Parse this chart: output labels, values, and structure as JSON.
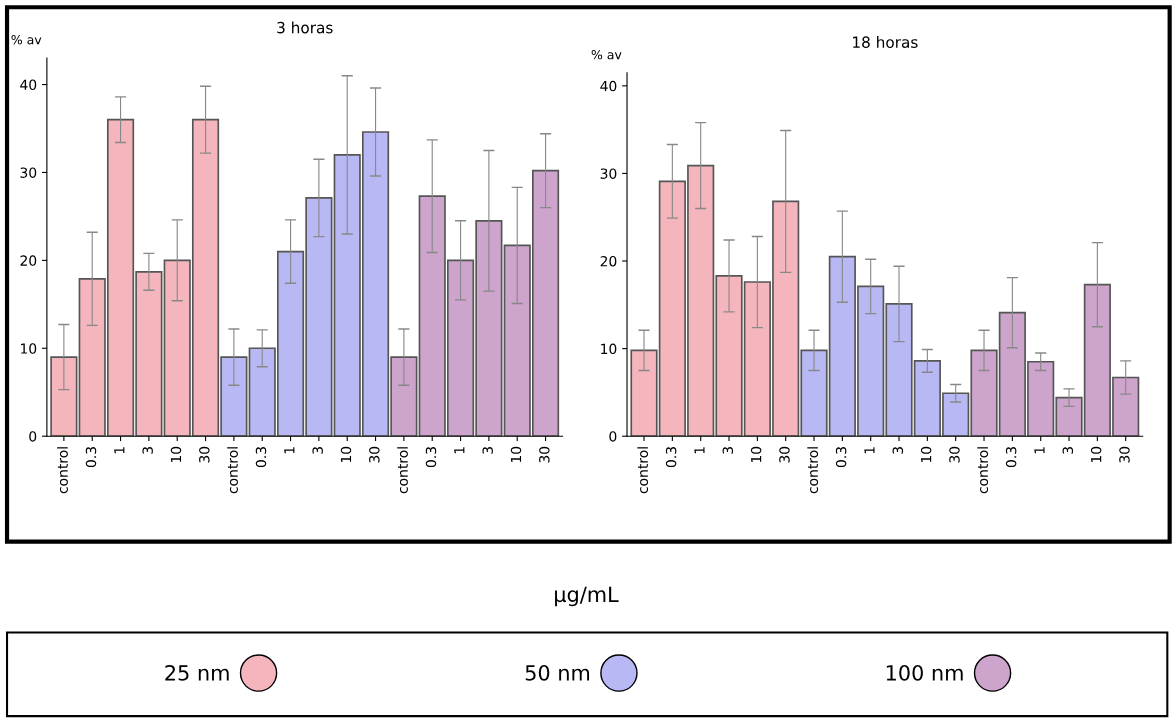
{
  "chart_data": [
    {
      "type": "bar",
      "title": "3 horas",
      "ylabel": "% av",
      "xlabel": "µg/mL",
      "categories": [
        "control",
        "0.3",
        "1",
        "3",
        "10",
        "30",
        "control",
        "0.3",
        "1",
        "3",
        "10",
        "30",
        "control",
        "0.3",
        "1",
        "3",
        "10",
        "30"
      ],
      "series": [
        {
          "name": "25 nm",
          "color": "#f4b6bc",
          "values": [
            9,
            17.9,
            36,
            18.7,
            20,
            36,
            null,
            null,
            null,
            null,
            null,
            null,
            null,
            null,
            null,
            null,
            null,
            null
          ],
          "errors": [
            3.7,
            5.3,
            2.6,
            2.1,
            4.6,
            3.8,
            null,
            null,
            null,
            null,
            null,
            null,
            null,
            null,
            null,
            null,
            null,
            null
          ]
        },
        {
          "name": "50 nm",
          "color": "#b8b8f4",
          "values": [
            null,
            null,
            null,
            null,
            null,
            null,
            9,
            10,
            21,
            27.1,
            32,
            34.6,
            null,
            null,
            null,
            null,
            null,
            null
          ],
          "errors": [
            null,
            null,
            null,
            null,
            null,
            null,
            3.2,
            2.1,
            3.6,
            4.4,
            9,
            5,
            null,
            null,
            null,
            null,
            null,
            null
          ]
        },
        {
          "name": "100 nm",
          "color": "#cca4cc",
          "values": [
            null,
            null,
            null,
            null,
            null,
            null,
            null,
            null,
            null,
            null,
            null,
            null,
            9,
            27.3,
            20,
            24.5,
            21.7,
            30.2
          ],
          "errors": [
            null,
            null,
            null,
            null,
            null,
            null,
            null,
            null,
            null,
            null,
            null,
            null,
            3.2,
            6.4,
            4.5,
            8,
            6.6,
            4.2
          ]
        }
      ],
      "ylim": [
        0,
        43
      ],
      "yticks": [
        0,
        10,
        20,
        30,
        40
      ],
      "legend": "bottom"
    },
    {
      "type": "bar",
      "title": "18 horas",
      "ylabel": "% av",
      "categories": [
        "control",
        "0.3",
        "1",
        "3",
        "10",
        "30",
        "control",
        "0.3",
        "1",
        "3",
        "10",
        "30",
        "control",
        "0.3",
        "1",
        "3",
        "10",
        "30"
      ],
      "series": [
        {
          "color": "#f4b6bc",
          "values": [
            9.8,
            29.1,
            30.9,
            18.3,
            17.6,
            26.8,
            null,
            null,
            null,
            null,
            null,
            null,
            null,
            null,
            null,
            null,
            null,
            null
          ],
          "errors": [
            2.3,
            4.2,
            4.9,
            4.1,
            5.2,
            8.1,
            null,
            null,
            null,
            null,
            null,
            null,
            null,
            null,
            null,
            null,
            null,
            null
          ]
        },
        {
          "color": "#b8b8f4",
          "values": [
            null,
            null,
            null,
            null,
            null,
            null,
            9.8,
            20.5,
            17.1,
            15.1,
            8.6,
            4.9,
            null,
            null,
            null,
            null,
            null,
            null
          ],
          "errors": [
            null,
            null,
            null,
            null,
            null,
            null,
            2.3,
            5.2,
            3.1,
            4.3,
            1.3,
            1,
            null,
            null,
            null,
            null,
            null,
            null
          ]
        },
        {
          "color": "#cca4cc",
          "values": [
            null,
            null,
            null,
            null,
            null,
            null,
            null,
            null,
            null,
            null,
            null,
            null,
            9.8,
            14.1,
            8.5,
            4.4,
            17.3,
            6.7
          ],
          "errors": [
            null,
            null,
            null,
            null,
            null,
            null,
            null,
            null,
            null,
            null,
            null,
            null,
            2.3,
            4,
            1,
            1,
            4.8,
            1.9
          ]
        }
      ],
      "ylim": [
        0,
        41.5
      ],
      "yticks": [
        0,
        10,
        20,
        30,
        40
      ]
    }
  ]
}
